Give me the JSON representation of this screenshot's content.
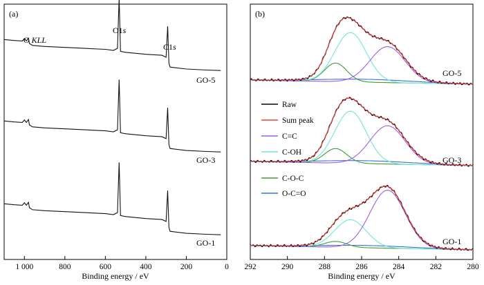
{
  "chart_data": [
    {
      "panel": "(a)",
      "type": "line",
      "xlabel": "Binding energy / eV",
      "ylabel": "",
      "xlim": [
        1100,
        0
      ],
      "x_ticks": [
        "1 000",
        "800",
        "600",
        "400",
        "200",
        "0"
      ],
      "x_tick_values": [
        1000,
        800,
        600,
        400,
        200,
        0
      ],
      "annotations": [
        "O ",
        "KLL",
        "O1",
        "s",
        "C1",
        "s"
      ],
      "series": [
        {
          "name": "GO-5",
          "x": [
            1100,
            1050,
            1010,
            1000,
            990,
            980,
            975,
            960,
            900,
            800,
            700,
            600,
            560,
            540,
            532,
            525,
            500,
            400,
            320,
            300,
            292,
            286,
            280,
            200,
            100,
            30
          ],
          "y": [
            0.88,
            0.86,
            0.85,
            0.9,
            0.85,
            0.91,
            0.8,
            0.76,
            0.74,
            0.72,
            0.7,
            0.68,
            0.66,
            0.7,
            1.72,
            0.64,
            0.62,
            0.58,
            0.56,
            0.52,
            1.15,
            0.4,
            0.32,
            0.28,
            0.26,
            0.25
          ]
        },
        {
          "name": "GO-3",
          "x": [
            1100,
            1050,
            1010,
            1000,
            990,
            980,
            975,
            960,
            900,
            800,
            700,
            600,
            560,
            540,
            532,
            525,
            500,
            400,
            320,
            300,
            292,
            286,
            280,
            200,
            100,
            30
          ],
          "y": [
            0.88,
            0.86,
            0.85,
            0.9,
            0.85,
            0.91,
            0.8,
            0.76,
            0.74,
            0.72,
            0.7,
            0.68,
            0.66,
            0.7,
            1.72,
            0.64,
            0.62,
            0.58,
            0.56,
            0.52,
            1.15,
            0.4,
            0.32,
            0.28,
            0.26,
            0.25
          ]
        },
        {
          "name": "GO-1",
          "x": [
            1100,
            1050,
            1010,
            1000,
            990,
            980,
            975,
            960,
            900,
            800,
            700,
            600,
            560,
            540,
            532,
            525,
            500,
            400,
            320,
            300,
            292,
            286,
            280,
            200,
            100,
            30
          ],
          "y": [
            0.88,
            0.86,
            0.85,
            0.9,
            0.85,
            0.91,
            0.8,
            0.76,
            0.74,
            0.72,
            0.7,
            0.68,
            0.66,
            0.7,
            1.72,
            0.64,
            0.62,
            0.58,
            0.56,
            0.52,
            1.15,
            0.4,
            0.32,
            0.28,
            0.26,
            0.25
          ]
        }
      ]
    },
    {
      "panel": "(b)",
      "type": "line",
      "xlabel": "Binding energy / eV",
      "ylabel": "",
      "xlim": [
        292,
        280
      ],
      "x_ticks": [
        "292",
        "290",
        "288",
        "286",
        "284",
        "282",
        "280"
      ],
      "x_tick_values": [
        292,
        290,
        288,
        286,
        284,
        282,
        280
      ],
      "legend": {
        "entries": [
          {
            "name": "Raw",
            "color": "#000000"
          },
          {
            "name": "Sum peak",
            "color": "#e8413c"
          },
          {
            "name": "C=C",
            "color": "#a15be6"
          },
          {
            "name": "C-OH",
            "color": "#6ee8d4"
          },
          {
            "name": "C-O-C",
            "color": "#3e9b3a"
          },
          {
            "name": "O-C=O",
            "color": "#3a6fd8"
          }
        ]
      },
      "components": {
        "C=C": {
          "center": 284.6,
          "width": 0.95
        },
        "C-OH": {
          "center": 286.6,
          "width": 0.85
        },
        "C-O-C": {
          "center": 287.4,
          "width": 0.6
        },
        "O-C=O": {
          "center": 285.8,
          "width": 2.5
        }
      },
      "samples": [
        {
          "name": "GO-5",
          "amplitudes": {
            "C=C": 0.62,
            "C-OH": 0.85,
            "C-O-C": 0.32,
            "O-C=O": 0.05
          }
        },
        {
          "name": "GO-3",
          "amplitudes": {
            "C=C": 0.66,
            "C-OH": 0.9,
            "C-O-C": 0.25,
            "O-C=O": 0.05
          }
        },
        {
          "name": "GO-1",
          "amplitudes": {
            "C=C": 1.0,
            "C-OH": 0.48,
            "C-O-C": 0.1,
            "O-C=O": 0.04
          }
        }
      ]
    }
  ],
  "labels": {
    "panel_a": "(a)",
    "panel_b": "(b)",
    "xlabel_a": "Binding energy / eV",
    "xlabel_b": "Binding energy / eV",
    "ann_o": "O ",
    "ann_kll": "KLL",
    "ann_o1": "O1",
    "ann_o1_s": "s",
    "ann_c1": "C1",
    "ann_c1_s": "s",
    "a_go5": "GO-5",
    "a_go3": "GO-3",
    "a_go1": "GO-1",
    "b_go5": "GO-5",
    "b_go3": "GO-3",
    "b_go1": "GO-1",
    "xt_a": [
      "1 000",
      "800",
      "600",
      "400",
      "200",
      "0"
    ],
    "xt_b": [
      "292",
      "290",
      "288",
      "286",
      "284",
      "282",
      "280"
    ],
    "legend": [
      "Raw",
      "Sum peak",
      "C=C",
      "C-OH",
      "C-O-C",
      "O-C=O"
    ]
  }
}
